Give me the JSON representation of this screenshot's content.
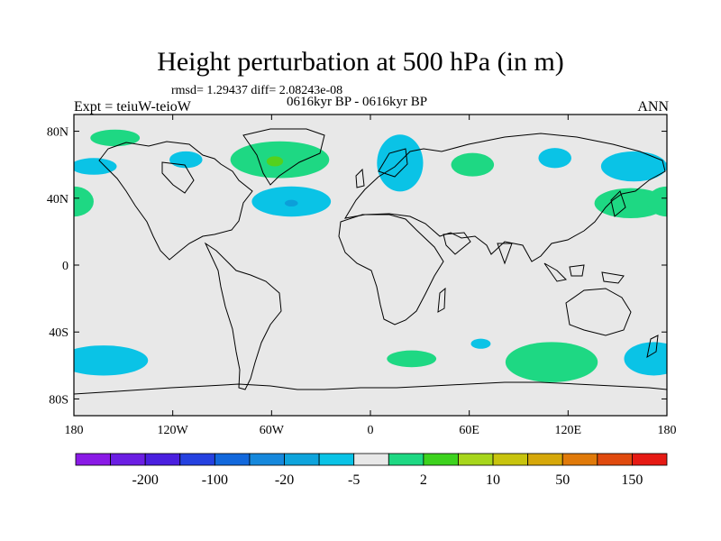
{
  "header": {
    "title": "Height perturbation at 500 hPa (in m)",
    "stats": "rmsd= 1.29437 diff= 2.08243e-08",
    "experiment": "Expt = teiuW-teioW",
    "period": "0616kyr BP - 0616kyr BP",
    "season": "ANN"
  },
  "map": {
    "projection": "cylindrical equidistant",
    "lon_range": [
      -180,
      180
    ],
    "lat_range": [
      -90,
      90
    ],
    "land_fill": "#e8e8e8",
    "coastline_color": "#000000",
    "lat_ticks": [
      {
        "value": 80,
        "label": "80N"
      },
      {
        "value": 40,
        "label": "40N"
      },
      {
        "value": 0,
        "label": "0"
      },
      {
        "value": -40,
        "label": "40S"
      },
      {
        "value": -80,
        "label": "80S"
      }
    ],
    "lon_ticks": [
      {
        "value": -180,
        "label": "180"
      },
      {
        "value": -120,
        "label": "120W"
      },
      {
        "value": -60,
        "label": "60W"
      },
      {
        "value": 0,
        "label": "0"
      },
      {
        "value": 60,
        "label": "60E"
      },
      {
        "value": 120,
        "label": "120E"
      },
      {
        "value": 180,
        "label": "180"
      }
    ],
    "anomaly_regions": [
      {
        "name": "north-pacific-high-lat",
        "sign": "positive",
        "color": "#1ed883",
        "lon": -155,
        "lat": 76,
        "rlon": 15,
        "rlat": 5
      },
      {
        "name": "alaska-low",
        "sign": "negative",
        "color": "#0ac3e6",
        "lon": -168,
        "lat": 59,
        "rlon": 14,
        "rlat": 5
      },
      {
        "name": "canada-low",
        "sign": "negative",
        "color": "#0ac3e6",
        "lon": -112,
        "lat": 63,
        "rlon": 10,
        "rlat": 5
      },
      {
        "name": "north-atlantic-high",
        "sign": "positive",
        "color": "#1ed883",
        "lon": -55,
        "lat": 63,
        "rlon": 30,
        "rlat": 11
      },
      {
        "name": "north-atlantic-high-core",
        "sign": "positive",
        "color": "#55d11d",
        "lon": -58,
        "lat": 62,
        "rlon": 5,
        "rlat": 3
      },
      {
        "name": "subtropical-atlantic-low",
        "sign": "negative",
        "color": "#0ac3e6",
        "lon": -48,
        "lat": 38,
        "rlon": 24,
        "rlat": 9
      },
      {
        "name": "subtropical-atlantic-low-core",
        "sign": "negative",
        "color": "#0c9fd9",
        "lon": -48,
        "lat": 37,
        "rlon": 4,
        "rlat": 2
      },
      {
        "name": "europe-low",
        "sign": "negative",
        "color": "#0ac3e6",
        "lon": 18,
        "lat": 61,
        "rlon": 14,
        "rlat": 17
      },
      {
        "name": "west-siberia-high",
        "sign": "positive",
        "color": "#1ed883",
        "lon": 62,
        "lat": 60,
        "rlon": 13,
        "rlat": 7
      },
      {
        "name": "central-siberia-low",
        "sign": "negative",
        "color": "#0ac3e6",
        "lon": 112,
        "lat": 64,
        "rlon": 10,
        "rlat": 6
      },
      {
        "name": "north-pacific-east-low",
        "sign": "negative",
        "color": "#0ac3e6",
        "lon": 160,
        "lat": 59,
        "rlon": 20,
        "rlat": 9
      },
      {
        "name": "west-pacific-high",
        "sign": "positive",
        "color": "#1ed883",
        "lon": 158,
        "lat": 37,
        "rlon": 22,
        "rlat": 9
      },
      {
        "name": "north-pacific-west-high",
        "sign": "positive",
        "color": "#1ed883",
        "lon": -180,
        "lat": 38,
        "rlon": 12,
        "rlat": 9
      },
      {
        "name": "south-pacific-low",
        "sign": "negative",
        "color": "#0ac3e6",
        "lon": -162,
        "lat": -57,
        "rlon": 27,
        "rlat": 9
      },
      {
        "name": "south-atlantic-high",
        "sign": "positive",
        "color": "#1ed883",
        "lon": 25,
        "lat": -56,
        "rlon": 15,
        "rlat": 5
      },
      {
        "name": "south-atlantic-low",
        "sign": "negative",
        "color": "#0ac3e6",
        "lon": 67,
        "lat": -47,
        "rlon": 6,
        "rlat": 3
      },
      {
        "name": "southern-indian-high",
        "sign": "positive",
        "color": "#1ed883",
        "lon": 110,
        "lat": -58,
        "rlon": 28,
        "rlat": 12
      },
      {
        "name": "south-pacific-east-low",
        "sign": "negative",
        "color": "#0ac3e6",
        "lon": 172,
        "lat": -56,
        "rlon": 18,
        "rlat": 10
      }
    ]
  },
  "colorbar": {
    "colors": [
      "#8a1ae6",
      "#6b1ee3",
      "#4a1fdf",
      "#2541e0",
      "#1268dc",
      "#1688dc",
      "#0ea4dc",
      "#0ac3e6",
      "#e8e8e8",
      "#1ed883",
      "#3dd21e",
      "#a7d61c",
      "#c8c40e",
      "#d6a80a",
      "#e07a0a",
      "#e04a0e",
      "#e61a14"
    ],
    "labels": [
      {
        "after_box": 2,
        "text": "-200"
      },
      {
        "after_box": 4,
        "text": "-100"
      },
      {
        "after_box": 6,
        "text": "-20"
      },
      {
        "after_box": 8,
        "text": "-5"
      },
      {
        "after_box": 10,
        "text": "2"
      },
      {
        "after_box": 12,
        "text": "10"
      },
      {
        "after_box": 14,
        "text": "50"
      },
      {
        "after_box": 16,
        "text": "150"
      }
    ]
  }
}
